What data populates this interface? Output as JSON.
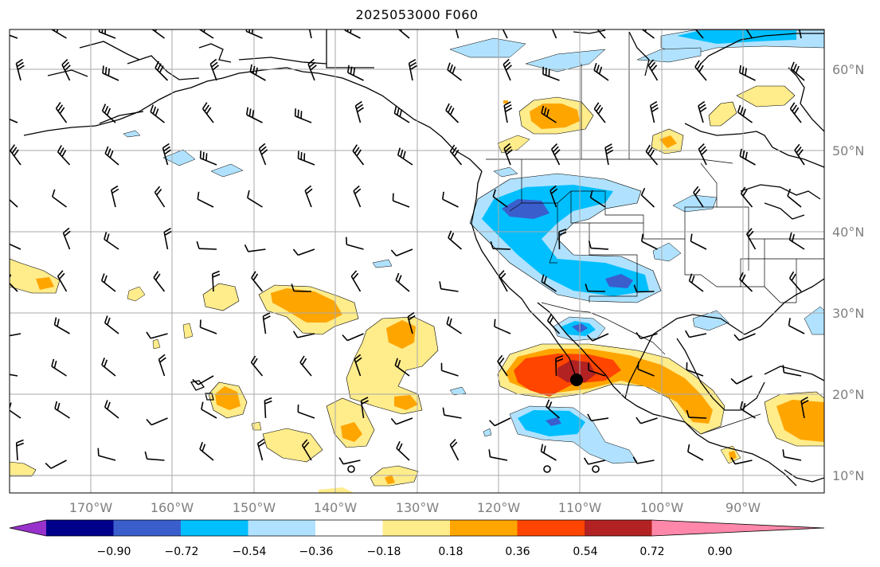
{
  "title": "2025053000 F060",
  "lat_labels": [
    "60°N",
    "50°N",
    "40°N",
    "30°N",
    "20°N",
    "10°N"
  ],
  "lon_labels": [
    "170°W",
    "160°W",
    "150°W",
    "140°W",
    "130°W",
    "120°W",
    "110°W",
    "100°W",
    "90°W"
  ],
  "colorbar": {
    "tick_labels": [
      "−0.90",
      "−0.72",
      "−0.54",
      "−0.36",
      "−0.18",
      "0.18",
      "0.36",
      "0.54",
      "0.72",
      "0.90"
    ],
    "colors": [
      "#9932cc",
      "#00008b",
      "#3a5fcd",
      "#00bfff",
      "#b0e2ff",
      "#ffffff",
      "#ffec8b",
      "#ffa500",
      "#ff4500",
      "#b22222",
      "#ff88aa"
    ]
  },
  "map": {
    "lon_range": [
      -180,
      -80
    ],
    "lat_range": [
      8,
      65
    ],
    "gridlines": true,
    "marker_icon": "storm-center-dot"
  }
}
